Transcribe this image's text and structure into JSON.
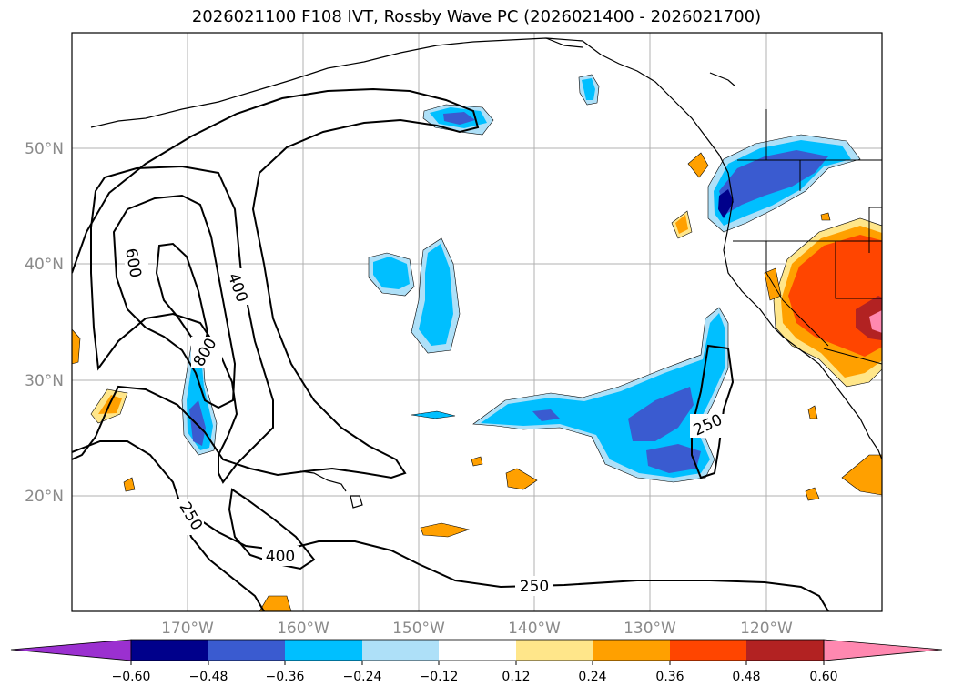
{
  "title": "2026021100 F108 IVT, Rossby Wave PC (2026021400 - 2026021700)",
  "map": {
    "lon_range": [
      -180,
      -110
    ],
    "lat_range": [
      10,
      60
    ],
    "lon_ticks": [
      "170°W",
      "160°W",
      "150°W",
      "140°W",
      "130°W",
      "120°W"
    ],
    "lat_ticks": [
      "50°N",
      "40°N",
      "30°N",
      "20°N"
    ],
    "contour_labels": [
      "600",
      "400",
      "800",
      "250",
      "400",
      "250",
      "250"
    ],
    "colors": {
      "neg_060_below": "#9b30d0",
      "neg_060": "#00008b",
      "neg_048": "#3a5bd0",
      "neg_036": "#00bfff",
      "neg_024": "#aee0f8",
      "near_zero": "#ffffff",
      "pos_012": "#ffe68a",
      "pos_024": "#ffa000",
      "pos_036": "#ff4500",
      "pos_048": "#b22222",
      "pos_060_above": "#ff88b0"
    }
  },
  "colorbar": {
    "tick_labels": [
      "−0.60",
      "−0.48",
      "−0.36",
      "−0.24",
      "−0.12",
      "0.12",
      "0.24",
      "0.36",
      "0.48",
      "0.60"
    ],
    "colors": [
      "#9b30d0",
      "#00008b",
      "#3a5bd0",
      "#00bfff",
      "#aee0f8",
      "#ffffff",
      "#ffe68a",
      "#ffa000",
      "#ff4500",
      "#b22222",
      "#ff88b0"
    ]
  }
}
